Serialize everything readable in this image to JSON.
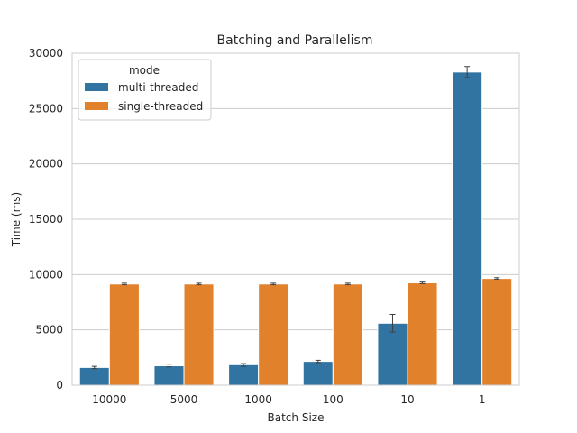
{
  "colors": {
    "multi_threaded": "#3274a1",
    "single_threaded": "#e1812c",
    "grid": "#cccccc",
    "error_bar": "#3f3f3f",
    "text": "#262626"
  },
  "chart_data": {
    "type": "bar",
    "title": "Batching and Parallelism",
    "xlabel": "Batch Size",
    "ylabel": "Time (ms)",
    "categories": [
      "10000",
      "5000",
      "1000",
      "100",
      "10",
      "1"
    ],
    "ylim": [
      0,
      30000
    ],
    "yticks": [
      0,
      5000,
      10000,
      15000,
      20000,
      25000,
      30000
    ],
    "grid": true,
    "legend": {
      "title": "mode",
      "placement": "top-left"
    },
    "series": [
      {
        "name": "multi-threaded",
        "values": [
          1600,
          1750,
          1850,
          2150,
          5600,
          28300
        ],
        "error_low": [
          1500,
          1650,
          1700,
          2050,
          4800,
          27800
        ],
        "error_high": [
          1700,
          1900,
          1950,
          2250,
          6400,
          28800
        ]
      },
      {
        "name": "single-threaded",
        "values": [
          9150,
          9150,
          9150,
          9150,
          9250,
          9650
        ],
        "error_low": [
          9080,
          9080,
          9080,
          9080,
          9180,
          9580
        ],
        "error_high": [
          9220,
          9220,
          9220,
          9220,
          9320,
          9720
        ]
      }
    ]
  }
}
